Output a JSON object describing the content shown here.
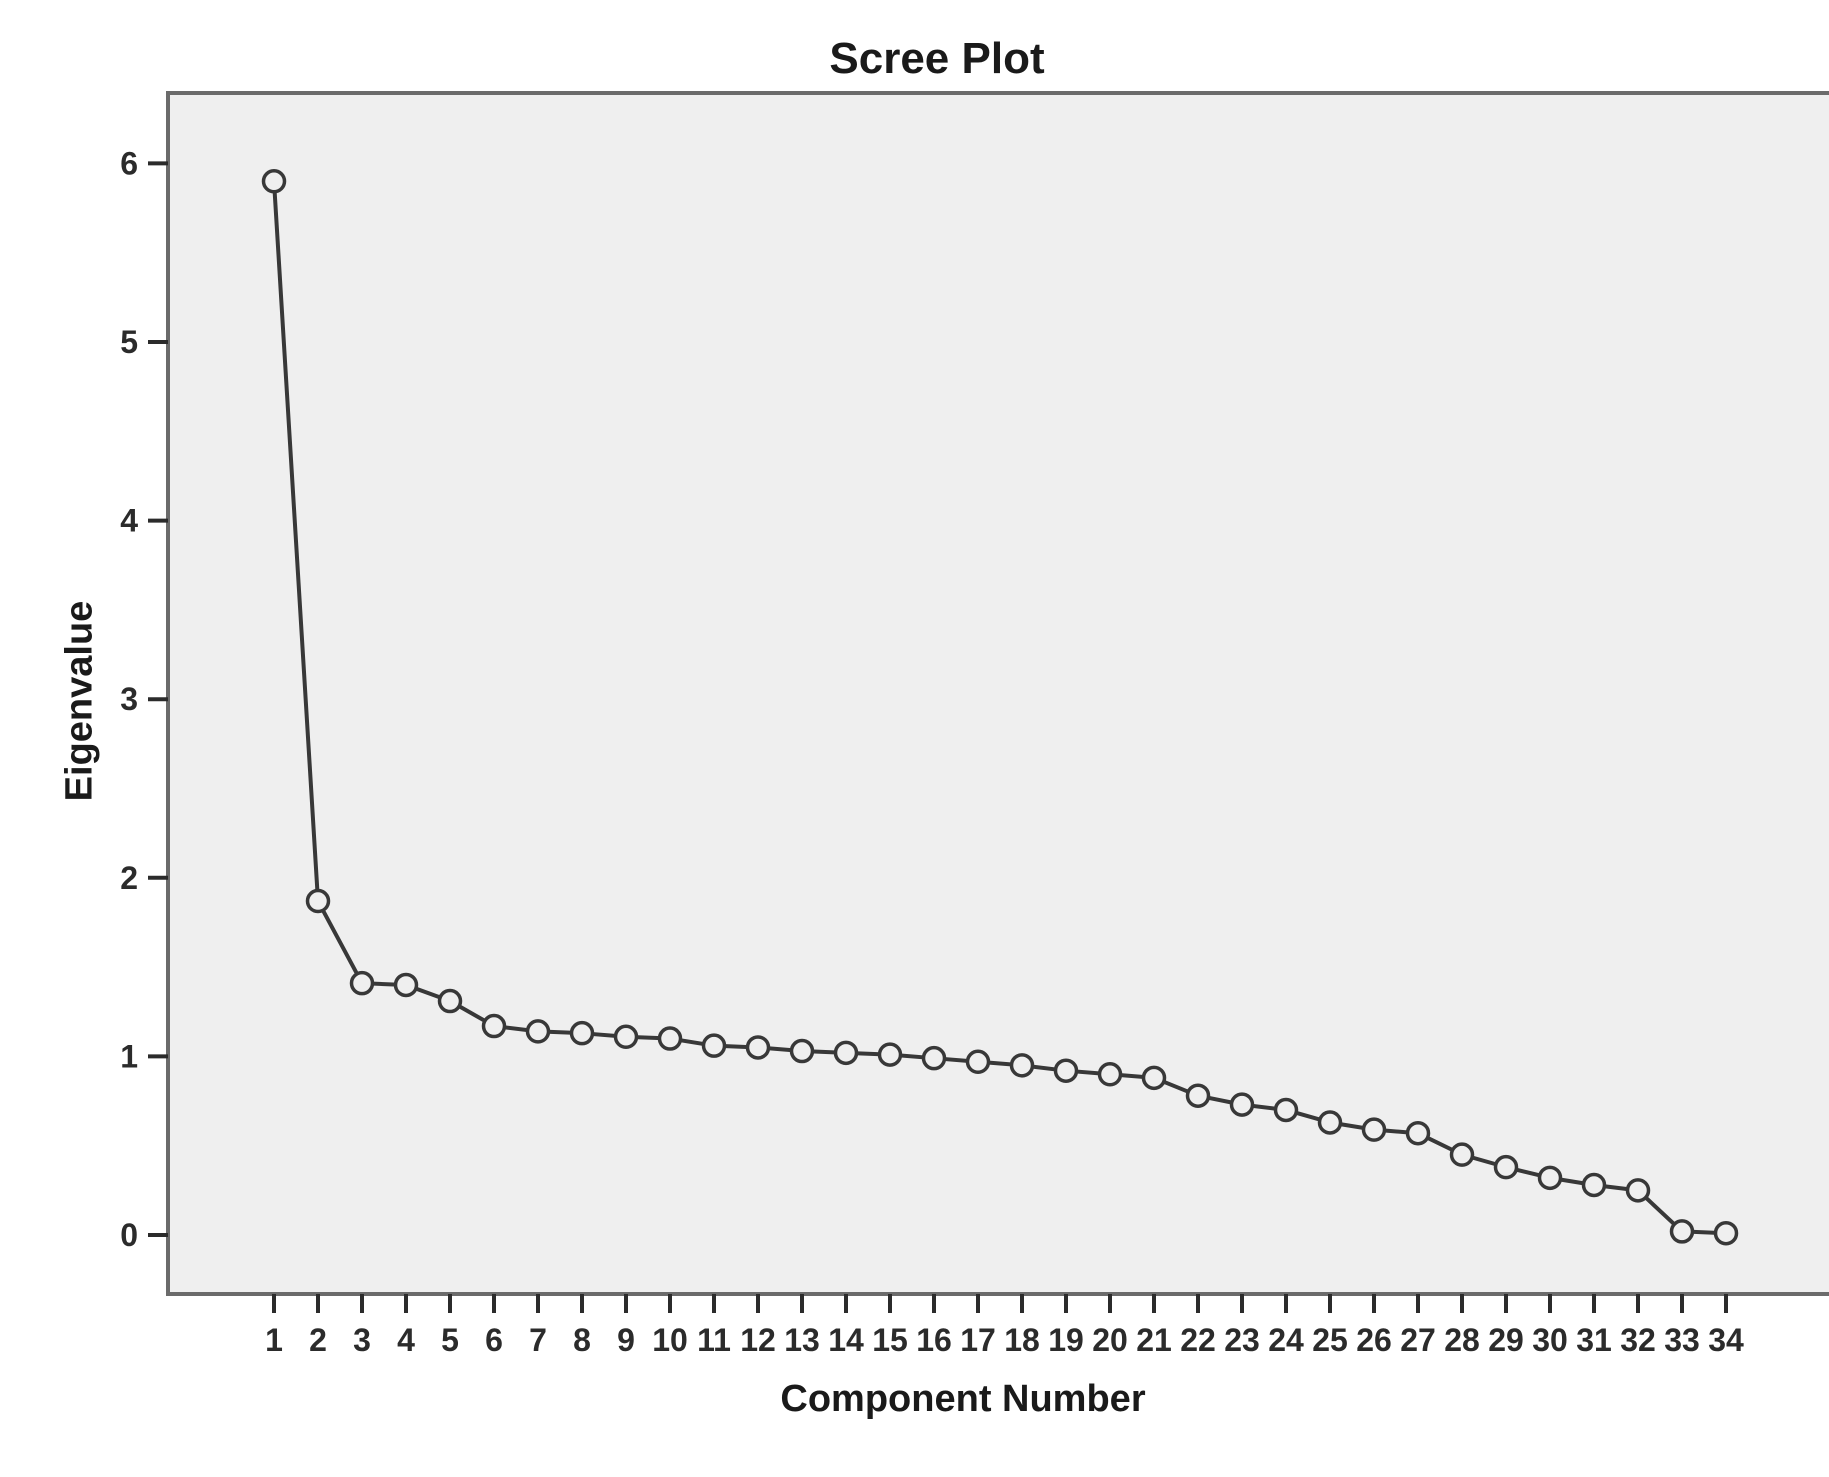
{
  "figure": {
    "title": "Scree Plot",
    "xlabel": "Component Number",
    "ylabel": "Eigenvalue"
  },
  "chart_data": {
    "type": "line",
    "title": "Scree Plot",
    "xlabel": "Component Number",
    "ylabel": "Eigenvalue",
    "x": [
      1,
      2,
      3,
      4,
      5,
      6,
      7,
      8,
      9,
      10,
      11,
      12,
      13,
      14,
      15,
      16,
      17,
      18,
      19,
      20,
      21,
      22,
      23,
      24,
      25,
      26,
      27,
      28,
      29,
      30,
      31,
      32,
      33,
      34
    ],
    "values": [
      5.9,
      1.87,
      1.41,
      1.4,
      1.31,
      1.17,
      1.14,
      1.13,
      1.11,
      1.1,
      1.06,
      1.05,
      1.03,
      1.02,
      1.01,
      0.99,
      0.97,
      0.95,
      0.92,
      0.9,
      0.88,
      0.78,
      0.73,
      0.7,
      0.63,
      0.59,
      0.57,
      0.45,
      0.38,
      0.32,
      0.28,
      0.25,
      0.02,
      0.01
    ],
    "yticks": [
      0,
      1,
      2,
      3,
      4,
      5,
      6
    ],
    "xticks": [
      1,
      2,
      3,
      4,
      5,
      6,
      7,
      8,
      9,
      10,
      11,
      12,
      13,
      14,
      15,
      16,
      17,
      18,
      19,
      20,
      21,
      22,
      23,
      24,
      25,
      26,
      27,
      28,
      29,
      30,
      31,
      32,
      33,
      34
    ],
    "ylim": [
      -0.33,
      6.4
    ],
    "grid": false,
    "legend": "none",
    "marker": "open-circle",
    "series_color": "#383838",
    "plot_bg": "#efefef",
    "outer_bg": "#ffffff",
    "frame_color": "#6b6b6b",
    "tick_color": "#2b2b2b"
  }
}
